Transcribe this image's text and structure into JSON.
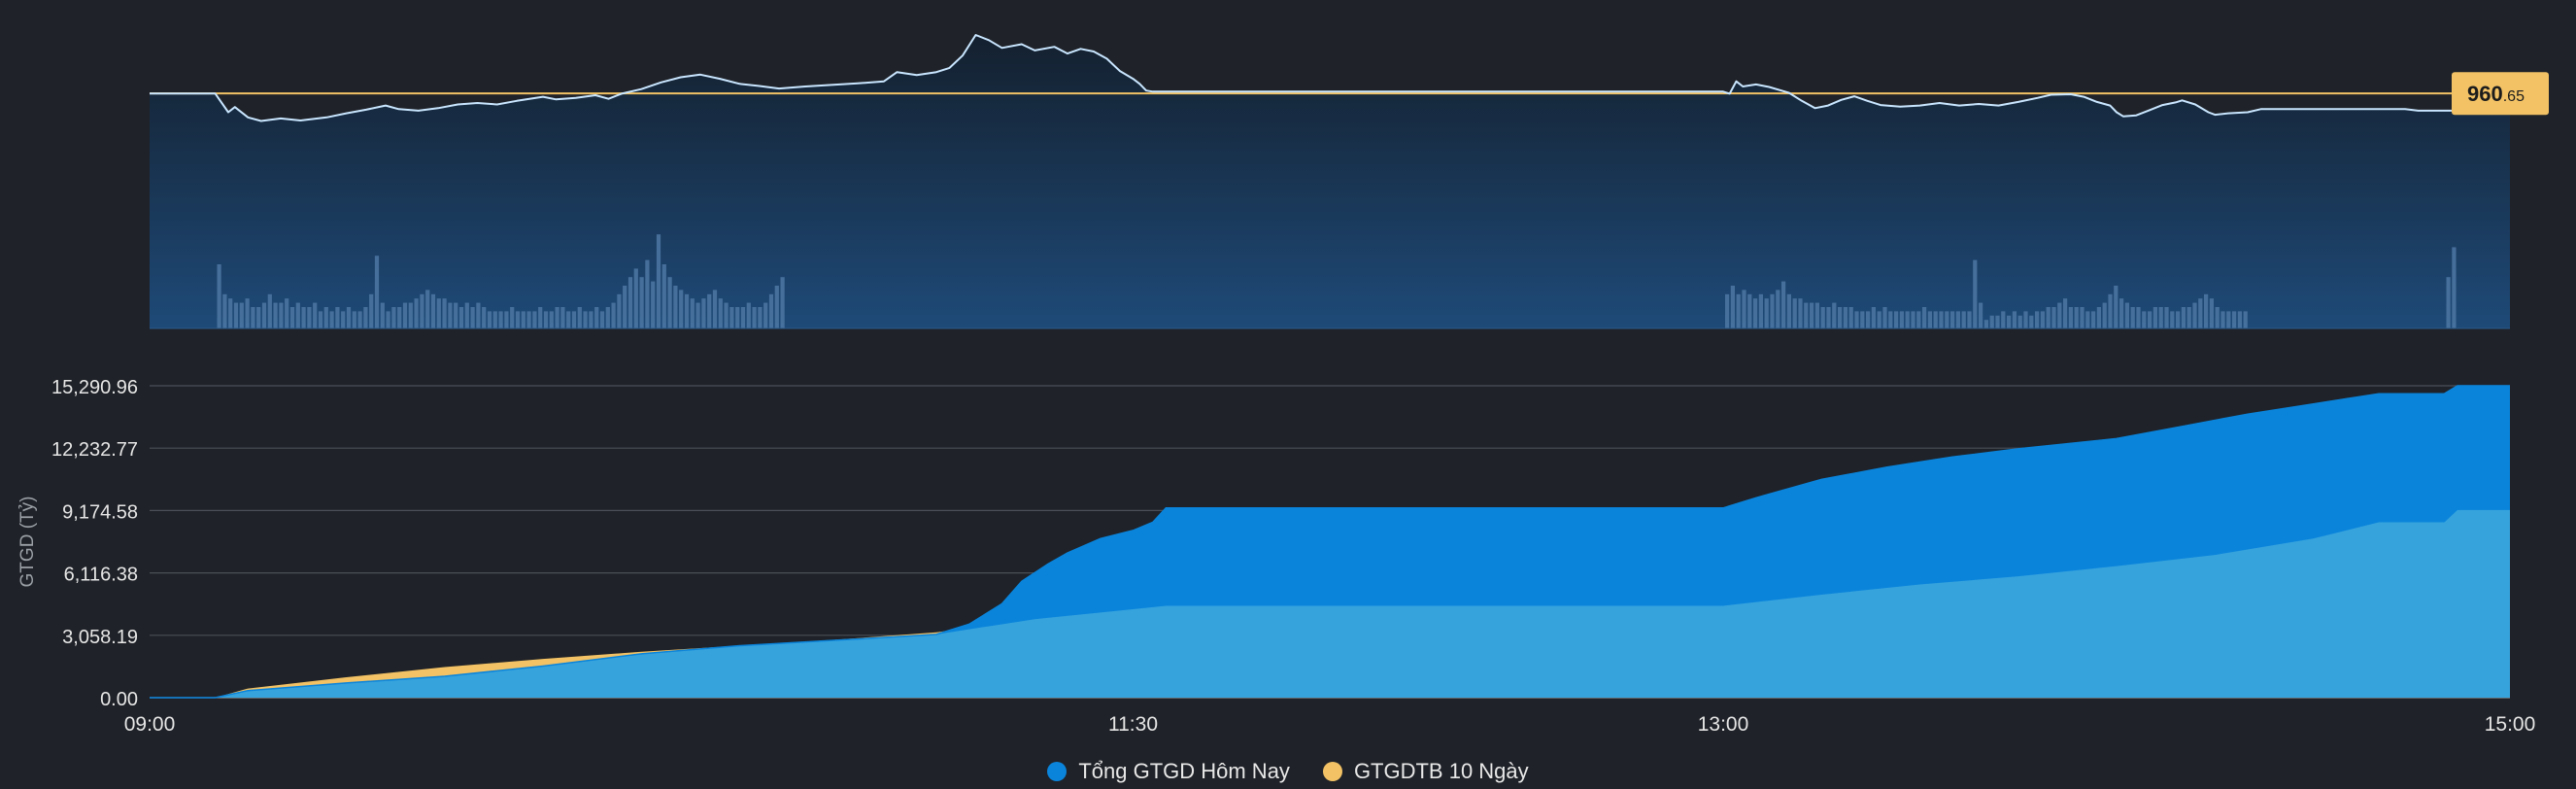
{
  "chart_data": [
    {
      "type": "line",
      "title": "",
      "reference_value_label": "960.65",
      "reference_value_integer": "960",
      "reference_value_decimal": ".65",
      "colors": {
        "line": "#c9e6ff",
        "reference": "#f2c265",
        "area": "#1f4a78",
        "volume": "#4d77a3"
      },
      "x_ticks": [
        "09:00",
        "11:30",
        "13:00",
        "15:00"
      ],
      "price_points": [
        [
          "09:00",
          960.65
        ],
        [
          "09:10",
          960.65
        ],
        [
          "09:12",
          957.0
        ],
        [
          "09:13",
          958.0
        ],
        [
          "09:15",
          956.0
        ],
        [
          "09:17",
          955.3
        ],
        [
          "09:20",
          955.8
        ],
        [
          "09:23",
          955.4
        ],
        [
          "09:27",
          956.0
        ],
        [
          "09:30",
          956.8
        ],
        [
          "09:33",
          957.5
        ],
        [
          "09:36",
          958.3
        ],
        [
          "09:38",
          957.6
        ],
        [
          "09:41",
          957.3
        ],
        [
          "09:44",
          957.8
        ],
        [
          "09:47",
          958.5
        ],
        [
          "09:50",
          958.8
        ],
        [
          "09:53",
          958.5
        ],
        [
          "09:56",
          959.2
        ],
        [
          "10:00",
          960.0
        ],
        [
          "10:02",
          959.5
        ],
        [
          "10:05",
          959.8
        ],
        [
          "10:08",
          960.3
        ],
        [
          "10:10",
          959.6
        ],
        [
          "10:12",
          960.6
        ],
        [
          "10:15",
          961.5
        ],
        [
          "10:18",
          962.8
        ],
        [
          "10:21",
          963.8
        ],
        [
          "10:24",
          964.3
        ],
        [
          "10:27",
          963.5
        ],
        [
          "10:30",
          962.5
        ],
        [
          "10:33",
          962.1
        ],
        [
          "10:36",
          961.6
        ],
        [
          "10:40",
          962.0
        ],
        [
          "10:44",
          962.3
        ],
        [
          "10:48",
          962.6
        ],
        [
          "10:52",
          963.0
        ],
        [
          "10:54",
          964.8
        ],
        [
          "10:57",
          964.2
        ],
        [
          "11:00",
          964.8
        ],
        [
          "11:02",
          965.6
        ],
        [
          "11:04",
          968.0
        ],
        [
          "11:06",
          972.0
        ],
        [
          "11:08",
          971.0
        ],
        [
          "11:10",
          969.5
        ],
        [
          "11:13",
          970.2
        ],
        [
          "11:15",
          969.0
        ],
        [
          "11:18",
          969.7
        ],
        [
          "11:20",
          968.4
        ],
        [
          "11:22",
          969.3
        ],
        [
          "11:24",
          968.8
        ],
        [
          "11:26",
          967.4
        ],
        [
          "11:28",
          965.0
        ],
        [
          "11:30",
          963.5
        ],
        [
          "11:31",
          962.5
        ],
        [
          "11:32",
          961.2
        ],
        [
          "11:33",
          961.0
        ],
        [
          "13:00",
          961.0
        ],
        [
          "13:01",
          960.6
        ],
        [
          "13:02",
          963.0
        ],
        [
          "13:03",
          962.0
        ],
        [
          "13:05",
          962.4
        ],
        [
          "13:07",
          961.9
        ],
        [
          "13:10",
          960.8
        ],
        [
          "13:12",
          959.2
        ],
        [
          "13:14",
          957.8
        ],
        [
          "13:16",
          958.3
        ],
        [
          "13:18",
          959.4
        ],
        [
          "13:20",
          960.1
        ],
        [
          "13:22",
          959.2
        ],
        [
          "13:24",
          958.4
        ],
        [
          "13:27",
          958.1
        ],
        [
          "13:30",
          958.3
        ],
        [
          "13:33",
          958.8
        ],
        [
          "13:36",
          958.3
        ],
        [
          "13:39",
          958.6
        ],
        [
          "13:42",
          958.3
        ],
        [
          "13:45",
          959.0
        ],
        [
          "13:48",
          959.8
        ],
        [
          "13:50",
          960.4
        ],
        [
          "13:53",
          960.5
        ],
        [
          "13:55",
          960.0
        ],
        [
          "13:57",
          959.0
        ],
        [
          "13:59",
          958.3
        ],
        [
          "14:00",
          957.0
        ],
        [
          "14:01",
          956.2
        ],
        [
          "14:03",
          956.4
        ],
        [
          "14:05",
          957.4
        ],
        [
          "14:07",
          958.4
        ],
        [
          "14:09",
          958.9
        ],
        [
          "14:10",
          959.3
        ],
        [
          "14:12",
          958.5
        ],
        [
          "14:14",
          957.0
        ],
        [
          "14:15",
          956.5
        ],
        [
          "14:17",
          956.8
        ],
        [
          "14:20",
          957.0
        ],
        [
          "14:22",
          957.6
        ],
        [
          "14:25",
          957.6
        ],
        [
          "14:30",
          957.6
        ],
        [
          "14:32",
          957.6
        ],
        [
          "14:33",
          957.6
        ],
        [
          "14:34",
          957.6
        ],
        [
          "14:35",
          957.6
        ],
        [
          "14:36",
          957.6
        ],
        [
          "14:40",
          957.6
        ],
        [
          "14:44",
          957.6
        ],
        [
          "14:46",
          957.3
        ],
        [
          "15:00",
          957.3
        ]
      ],
      "volume_bars": [
        [
          "09:10",
          [
            15,
            8,
            7,
            6,
            6,
            7,
            5,
            5,
            6,
            8,
            6,
            6,
            7,
            5,
            6,
            5,
            5,
            6,
            4,
            5,
            4,
            5,
            4,
            5,
            4,
            4,
            5,
            8,
            17,
            6,
            4,
            5,
            5,
            6,
            6,
            7,
            8,
            9,
            8,
            7,
            7,
            6,
            6,
            5,
            6,
            5,
            6,
            5,
            4,
            4,
            4,
            4,
            5,
            4,
            4,
            4,
            4,
            5,
            4,
            4,
            5,
            5,
            4,
            4,
            5,
            4,
            4,
            5,
            4,
            5,
            6,
            8,
            10,
            12,
            14,
            12,
            16,
            11,
            22,
            15,
            12,
            10,
            9,
            8,
            7,
            6,
            7,
            8,
            9,
            7,
            6,
            5,
            5,
            5,
            6,
            5,
            5,
            6,
            8,
            10,
            12
          ]
        ],
        [
          "13:00",
          [
            8,
            10,
            8,
            9,
            8,
            7,
            8,
            7,
            8,
            9,
            11,
            8,
            7,
            7,
            6,
            6,
            6,
            5,
            5,
            6,
            5,
            5,
            5,
            4,
            4,
            4,
            5,
            4,
            5,
            4,
            4,
            4,
            4,
            4,
            4,
            5,
            4,
            4,
            4,
            4,
            4,
            4,
            4,
            4,
            16,
            6,
            2,
            3,
            3,
            4,
            3,
            4,
            3,
            4,
            3,
            4,
            4,
            5,
            5,
            6,
            7,
            5,
            5,
            5,
            4,
            4,
            5,
            6,
            8,
            10,
            7,
            6,
            5,
            5,
            4,
            4,
            5,
            5,
            5,
            4,
            4,
            5,
            5,
            6,
            7,
            8,
            7,
            5,
            4,
            4,
            4,
            4,
            4
          ]
        ],
        [
          "14:50",
          [
            12,
            19
          ]
        ]
      ]
    },
    {
      "type": "area",
      "title": "",
      "ylabel": "GTGD (Tỷ)",
      "ylim": [
        0,
        15290.96
      ],
      "y_ticks": [
        "0.00",
        "3,058.19",
        "6,116.38",
        "9,174.58",
        "12,232.77",
        "15,290.96"
      ],
      "x_ticks": [
        "09:00",
        "11:30",
        "13:00",
        "15:00"
      ],
      "legend_position": "bottom-center",
      "series": [
        {
          "name": "Tổng GTGD Hôm Nay",
          "color": "#0a84db",
          "points": [
            [
              "09:00",
              0
            ],
            [
              "09:10",
              0
            ],
            [
              "09:15",
              350
            ],
            [
              "09:30",
              720
            ],
            [
              "09:45",
              1050
            ],
            [
              "10:00",
              1550
            ],
            [
              "10:15",
              2150
            ],
            [
              "10:30",
              2550
            ],
            [
              "10:45",
              2820
            ],
            [
              "11:00",
              3100
            ],
            [
              "11:05",
              3600
            ],
            [
              "11:10",
              4600
            ],
            [
              "11:13",
              5700
            ],
            [
              "11:17",
              6550
            ],
            [
              "11:20",
              7100
            ],
            [
              "11:25",
              7800
            ],
            [
              "11:30",
              8200
            ],
            [
              "11:33",
              8600
            ],
            [
              "11:35",
              9300
            ],
            [
              "13:00",
              9300
            ],
            [
              "13:05",
              9800
            ],
            [
              "13:15",
              10700
            ],
            [
              "13:25",
              11300
            ],
            [
              "13:35",
              11800
            ],
            [
              "13:45",
              12200
            ],
            [
              "14:00",
              12700
            ],
            [
              "14:10",
              13300
            ],
            [
              "14:20",
              13900
            ],
            [
              "14:30",
              14400
            ],
            [
              "14:40",
              14900
            ],
            [
              "14:50",
              14900
            ],
            [
              "14:52",
              15290.96
            ],
            [
              "15:00",
              15290.96
            ]
          ]
        },
        {
          "name": "GTGDTB 10 Ngày",
          "color": "#f2c265",
          "points": [
            [
              "09:00",
              0
            ],
            [
              "09:10",
              0
            ],
            [
              "09:15",
              450
            ],
            [
              "09:30",
              1000
            ],
            [
              "09:45",
              1500
            ],
            [
              "10:00",
              1900
            ],
            [
              "10:15",
              2250
            ],
            [
              "10:30",
              2550
            ],
            [
              "10:45",
              2850
            ],
            [
              "11:00",
              3200
            ],
            [
              "11:15",
              3850
            ],
            [
              "11:35",
              4500
            ],
            [
              "13:00",
              4500
            ],
            [
              "13:15",
              5050
            ],
            [
              "13:30",
              5550
            ],
            [
              "13:45",
              5950
            ],
            [
              "14:00",
              6450
            ],
            [
              "14:15",
              7000
            ],
            [
              "14:30",
              7800
            ],
            [
              "14:40",
              8600
            ],
            [
              "14:50",
              8600
            ],
            [
              "14:52",
              9200
            ],
            [
              "15:00",
              9200
            ]
          ]
        }
      ]
    }
  ],
  "legend": [
    {
      "label": "Tổng GTGD Hôm Nay",
      "color": "#0a84db"
    },
    {
      "label": "GTGDTB 10 Ngày",
      "color": "#f2c265"
    }
  ]
}
